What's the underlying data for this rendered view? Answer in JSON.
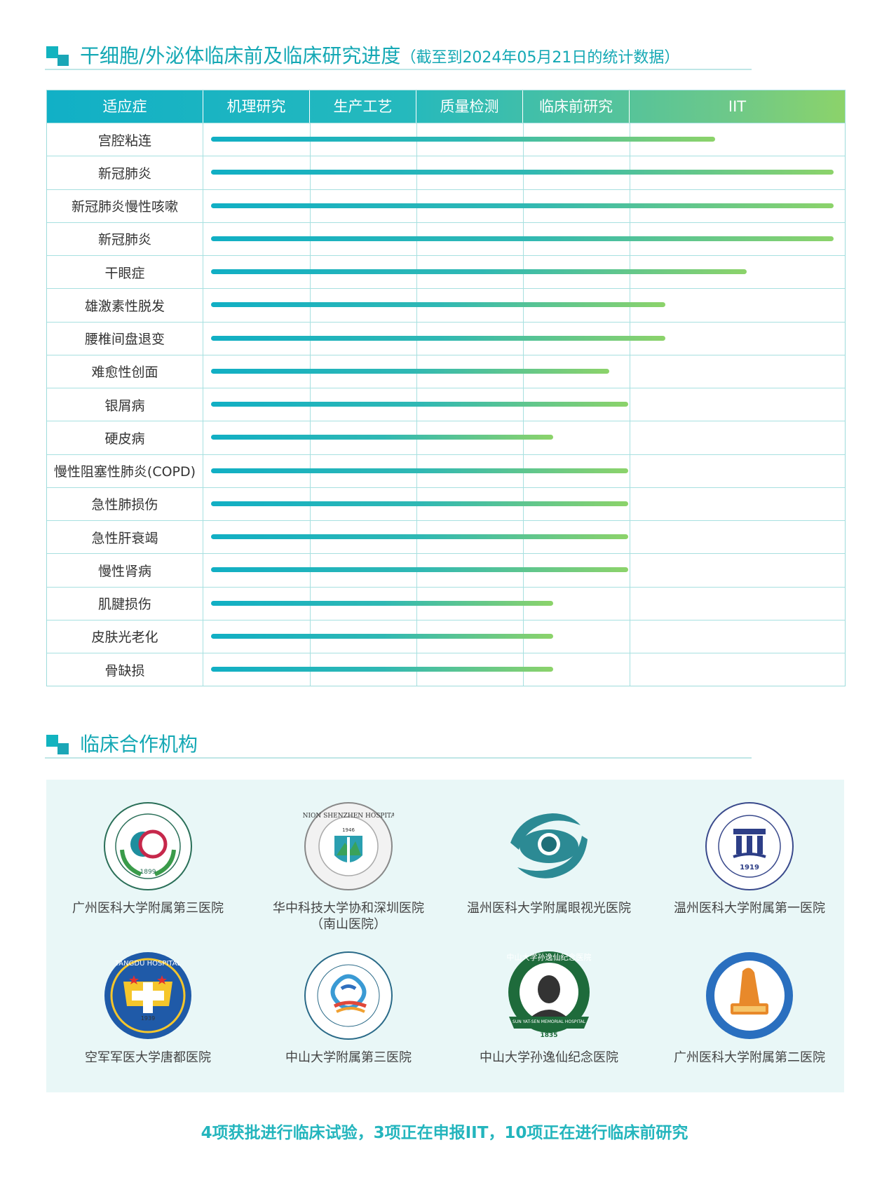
{
  "section1": {
    "title": "干细胞/外泌体临床前及临床研究进度",
    "subtitle": "（截至到2024年05月21日的统计数据）"
  },
  "table": {
    "headers": [
      "适应症",
      "机理研究",
      "生产工艺",
      "质量检测",
      "临床前研究",
      "IIT"
    ],
    "rows": [
      {
        "name": "宫腔粘连",
        "progress": 0.81
      },
      {
        "name": "新冠肺炎",
        "progress": 1.0
      },
      {
        "name": "新冠肺炎慢性咳嗽",
        "progress": 1.0
      },
      {
        "name": "新冠肺炎",
        "progress": 1.0
      },
      {
        "name": "干眼症",
        "progress": 0.86
      },
      {
        "name": "雄激素性脱发",
        "progress": 0.73
      },
      {
        "name": "腰椎间盘退变",
        "progress": 0.73
      },
      {
        "name": "难愈性创面",
        "progress": 0.64
      },
      {
        "name": "银屑病",
        "progress": 0.67
      },
      {
        "name": "硬皮病",
        "progress": 0.55
      },
      {
        "name": "慢性阻塞性肺炎(COPD)",
        "progress": 0.67
      },
      {
        "name": "急性肺损伤",
        "progress": 0.67
      },
      {
        "name": "急性肝衰竭",
        "progress": 0.67
      },
      {
        "name": "慢性肾病",
        "progress": 0.67
      },
      {
        "name": "肌腱损伤",
        "progress": 0.55
      },
      {
        "name": "皮肤光老化",
        "progress": 0.55
      },
      {
        "name": "骨缺损",
        "progress": 0.55
      }
    ]
  },
  "section2": {
    "title": "临床合作机构"
  },
  "organizations": [
    {
      "name": "广州医科大学附属第三医院",
      "name2": ""
    },
    {
      "name": "华中科技大学协和深圳医院",
      "name2": "（南山医院）"
    },
    {
      "name": "温州医科大学附属眼视光医院",
      "name2": ""
    },
    {
      "name": "温州医科大学附属第一医院",
      "name2": ""
    },
    {
      "name": "空军军医大学唐都医院",
      "name2": ""
    },
    {
      "name": "中山大学附属第三医院",
      "name2": ""
    },
    {
      "name": "中山大学孙逸仙纪念医院",
      "name2": ""
    },
    {
      "name": "广州医科大学附属第二医院",
      "name2": ""
    }
  ],
  "logo_text": {
    "l1_year": "1899",
    "l2_ring": "UNION SHENZHEN HOSPITAL",
    "l2_year": "1946",
    "l4_year": "1919",
    "l5_ring": "TANGDU HOSPITAL",
    "l5_year": "1939",
    "l7_ring": "中山大学孙逸仙纪念医院",
    "l7_band": "SUN YAT-SEN MEMORIAL HOSPITAL",
    "l7_year": "1835"
  },
  "summary": "4项获批进行临床试验，3项正在申报IIT，10项正在进行临床前研究",
  "colors": {
    "accent": "#14a8b4",
    "bar_start": "#11afc4",
    "bar_end": "#8cd36a",
    "panel": "#e9f7f7"
  }
}
